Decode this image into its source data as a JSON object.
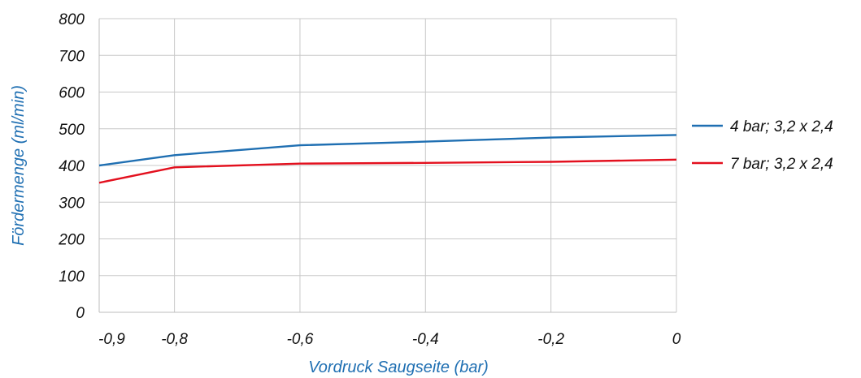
{
  "chart_data": {
    "type": "line",
    "x": [
      -0.92,
      -0.8,
      -0.6,
      -0.4,
      -0.2,
      0
    ],
    "series": [
      {
        "name": "4 bar; 3,2 x 2,4",
        "values": [
          400,
          428,
          455,
          465,
          476,
          483
        ],
        "color": "#1f6fb2"
      },
      {
        "name": "7 bar; 3,2 x 2,4",
        "values": [
          353,
          395,
          405,
          407,
          410,
          416
        ],
        "color": "#e3101e"
      }
    ],
    "xlabel": "Vordruck Saugseite (bar)",
    "ylabel": "Fördermenge (ml/min)",
    "xlim": [
      -0.92,
      0
    ],
    "ylim": [
      0,
      800
    ],
    "xticks": [
      {
        "value": -0.9,
        "label": "-0,9"
      },
      {
        "value": -0.8,
        "label": "-0,8"
      },
      {
        "value": -0.6,
        "label": "-0,6"
      },
      {
        "value": -0.4,
        "label": "-0,4"
      },
      {
        "value": -0.2,
        "label": "-0,2"
      },
      {
        "value": 0,
        "label": "0"
      }
    ],
    "yticks": [
      0,
      100,
      200,
      300,
      400,
      500,
      600,
      700,
      800
    ],
    "grid": true,
    "legend_position": "right",
    "axis_title_color": "#1f6fb2"
  }
}
